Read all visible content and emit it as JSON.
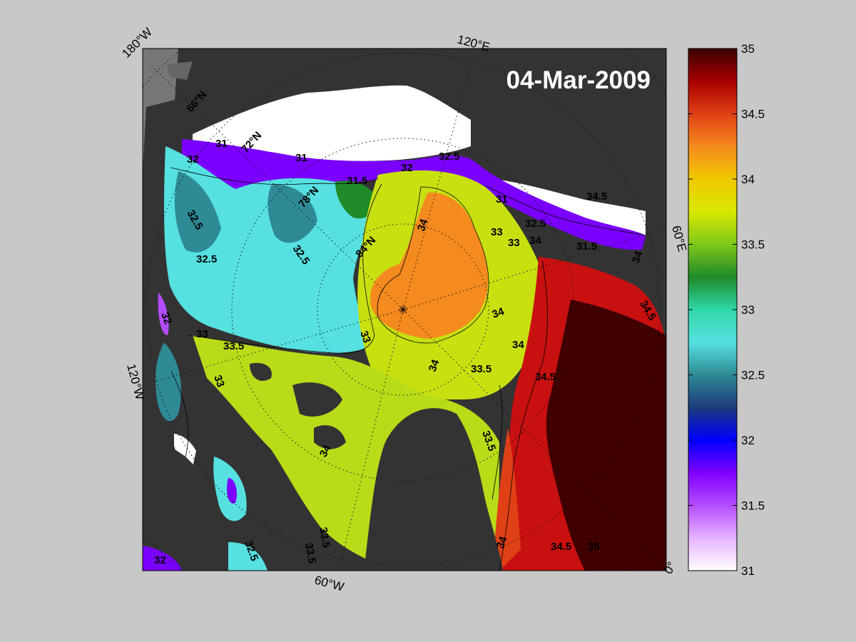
{
  "date_label": "04-Mar-2009",
  "longitude_labels": {
    "w180": "180°W",
    "e120": "120°E",
    "e60": "60°E",
    "w120": "120°W",
    "w60": "60°W",
    "e0": "0°"
  },
  "latitude_labels": [
    "66°N",
    "72°N",
    "78°N",
    "84°N"
  ],
  "colorbar": {
    "min": 31,
    "max": 35,
    "ticks": [
      "31",
      "31.5",
      "32",
      "32.5",
      "33",
      "33.5",
      "34",
      "34.5",
      "35"
    ],
    "colormap": [
      "#ffffff",
      "#e6b3ff",
      "#b44cff",
      "#8000ff",
      "#0000ff",
      "#1c3b7c",
      "#2e8a95",
      "#56e0e0",
      "#2fd8a8",
      "#1f8a28",
      "#7ec81a",
      "#d8e800",
      "#f0c800",
      "#f58a1e",
      "#e04015",
      "#a80000",
      "#3a0000"
    ]
  },
  "colors": {
    "land": "#333333",
    "land_light": "#777777",
    "ice": "#ffffff",
    "background": "#c8c8c8"
  },
  "contour_labels": [
    "31",
    "31",
    "31",
    "31.5",
    "31.5",
    "32",
    "32",
    "32",
    "32",
    "32.5",
    "32.5",
    "32.5",
    "32.5",
    "32.5",
    "32.5",
    "33",
    "33",
    "33",
    "33",
    "33",
    "33.5",
    "33.5",
    "33.5",
    "33.5",
    "33.5",
    "34",
    "34",
    "34",
    "34",
    "34",
    "34",
    "34",
    "34",
    "34.5",
    "34.5",
    "34.5",
    "34.5",
    "35"
  ]
}
